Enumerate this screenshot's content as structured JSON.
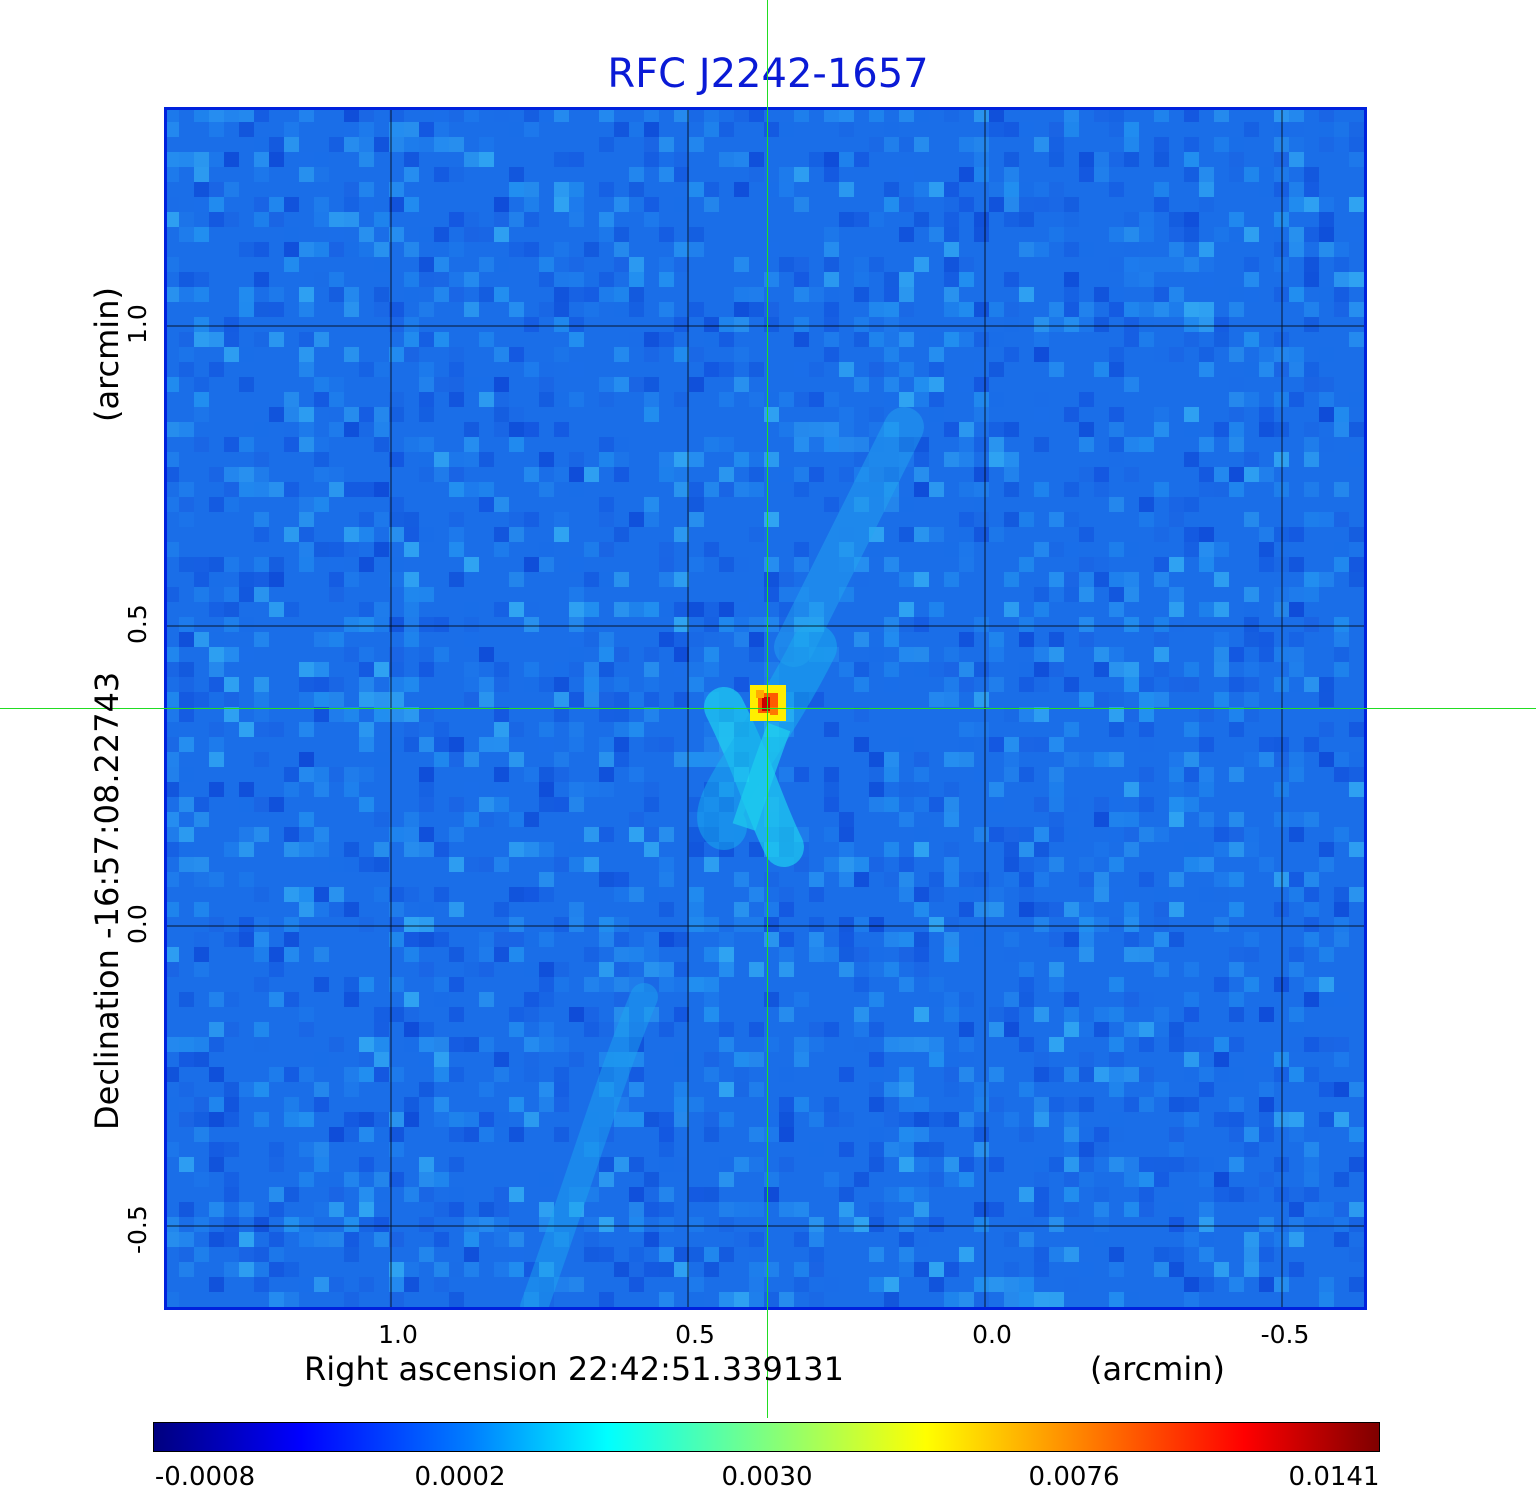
{
  "title": "RFC J2242-1657",
  "x_axis": {
    "label": "Right ascension  22:42:51.339131",
    "unit": "(arcmin)",
    "ticks": [
      "1.0",
      "0.5",
      "0.0",
      "-0.5"
    ]
  },
  "y_axis": {
    "label": "Declination  -16:57:08.22743",
    "unit": "(arcmin)",
    "ticks": [
      "1.0",
      "0.5",
      "0.0",
      "-0.5"
    ]
  },
  "colorbar": {
    "colormap": "jet",
    "ticks": [
      "-0.0008",
      "0.0002",
      "0.0030",
      "0.0076",
      "0.0141"
    ]
  },
  "colors": {
    "title": "#0a1ad6",
    "frame": "#0022dd",
    "crosshair": "#22dd22",
    "background_noise": "#1a6ee8"
  }
}
